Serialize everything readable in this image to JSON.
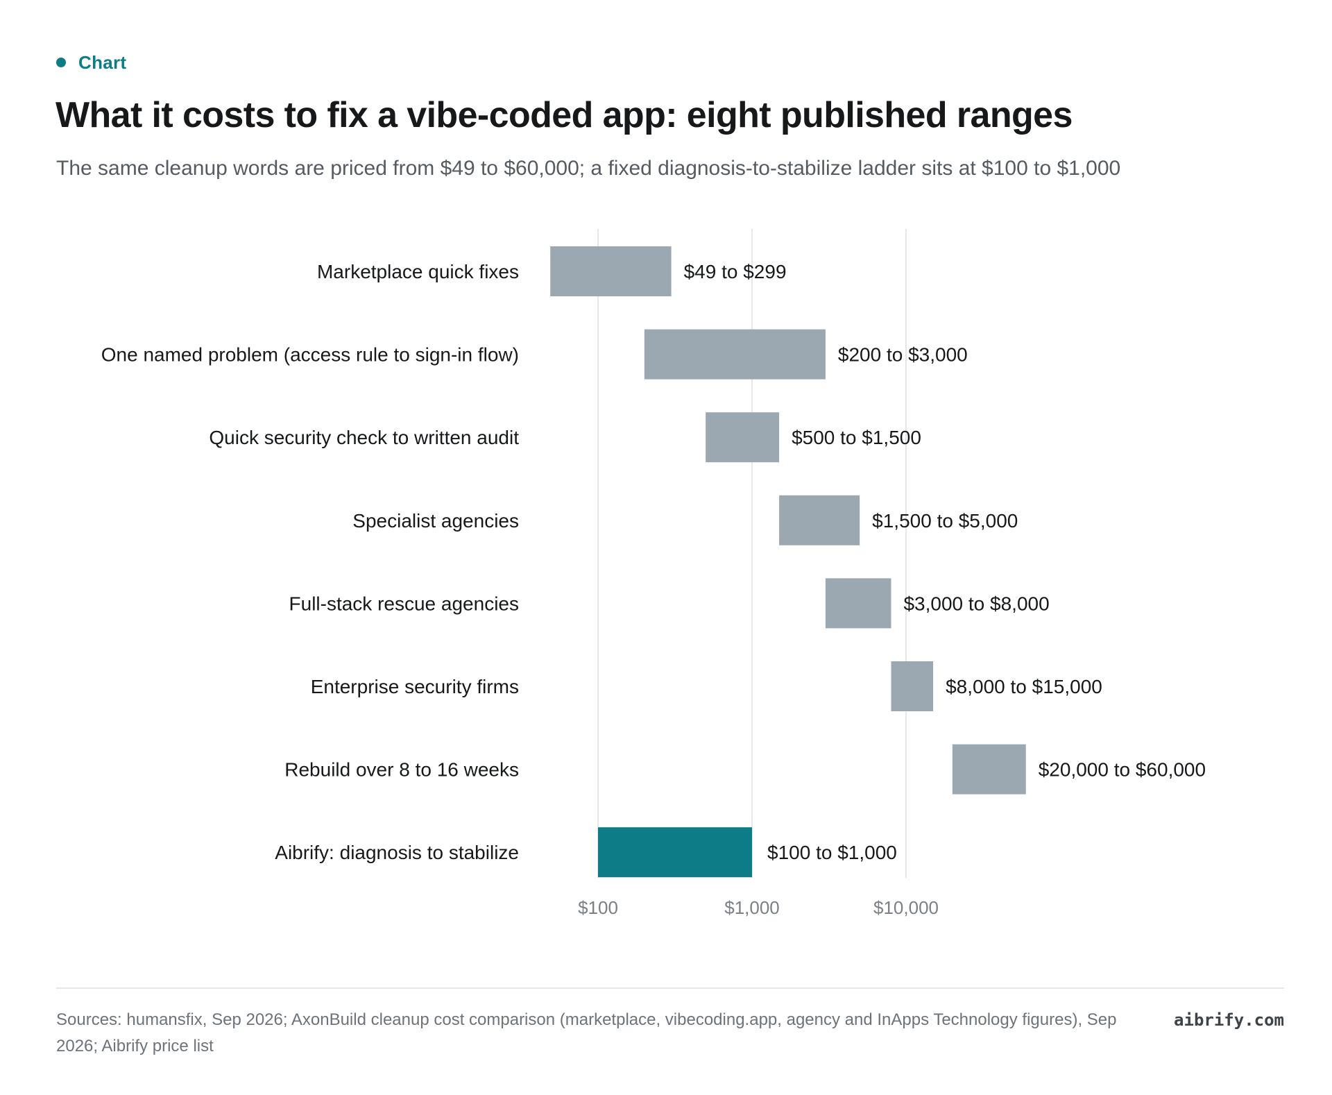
{
  "kicker": {
    "label": "Chart",
    "color": "#0e7c87"
  },
  "title": "What it costs to fix a vibe-coded app: eight published ranges",
  "subtitle": "The same cleanup words are priced from $49 to $60,000; a fixed diagnosis-to-stabilize ladder sits at $100 to $1,000",
  "chart_data": {
    "type": "bar",
    "orientation": "horizontal",
    "x_scale": "log",
    "xlim": [
      49,
      60000
    ],
    "grid": true,
    "ticks": [
      {
        "value": 100,
        "label": "$100"
      },
      {
        "value": 1000,
        "label": "$1,000"
      },
      {
        "value": 10000,
        "label": "$10,000"
      }
    ],
    "rows": [
      {
        "label": "Marketplace quick fixes",
        "low": 49,
        "high": 299,
        "value_label": "$49 to $299",
        "highlight": false
      },
      {
        "label": "One named problem (access rule to sign-in flow)",
        "low": 200,
        "high": 3000,
        "value_label": "$200 to $3,000",
        "highlight": false
      },
      {
        "label": "Quick security check to written audit",
        "low": 500,
        "high": 1500,
        "value_label": "$500 to $1,500",
        "highlight": false
      },
      {
        "label": "Specialist agencies",
        "low": 1500,
        "high": 5000,
        "value_label": "$1,500 to $5,000",
        "highlight": false
      },
      {
        "label": "Full-stack rescue agencies",
        "low": 3000,
        "high": 8000,
        "value_label": "$3,000 to $8,000",
        "highlight": false
      },
      {
        "label": "Enterprise security firms",
        "low": 8000,
        "high": 15000,
        "value_label": "$8,000 to $15,000",
        "highlight": false
      },
      {
        "label": "Rebuild over 8 to 16 weeks",
        "low": 20000,
        "high": 60000,
        "value_label": "$20,000 to $60,000",
        "highlight": false
      },
      {
        "label": "Aibrify: diagnosis to stabilize",
        "low": 100,
        "high": 1000,
        "value_label": "$100 to $1,000",
        "highlight": true
      }
    ],
    "colors": {
      "bar": "#9ba8b1",
      "highlight": "#0e7c87",
      "grid": "#e6e7e9"
    }
  },
  "footer": {
    "sources": "Sources: humansfix, Sep 2026; AxonBuild cleanup cost comparison (marketplace, vibecoding.app, agency and InApps Technology figures), Sep 2026; Aibrify price list",
    "brand": "aibrify.com"
  }
}
